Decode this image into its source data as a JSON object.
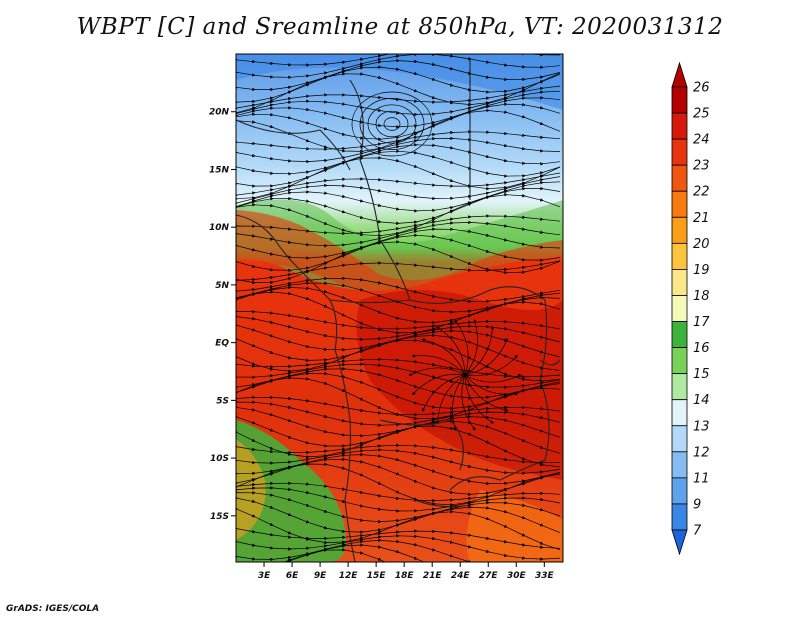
{
  "title": "WBPT [C] and Sreamline at 850hPa, VT: 2020031312",
  "footer": "GrADS: IGES/COLA",
  "map": {
    "lon_range": [
      0,
      35
    ],
    "lat_range": [
      -19,
      25
    ],
    "lat_ticks": [
      {
        "value": 20,
        "label": "20N"
      },
      {
        "value": 15,
        "label": "15N"
      },
      {
        "value": 10,
        "label": "10N"
      },
      {
        "value": 5,
        "label": "5N"
      },
      {
        "value": 0,
        "label": "EQ"
      },
      {
        "value": -5,
        "label": "5S"
      },
      {
        "value": -10,
        "label": "10S"
      },
      {
        "value": -15,
        "label": "15S"
      }
    ],
    "lon_ticks": [
      {
        "value": 3,
        "label": "3E"
      },
      {
        "value": 6,
        "label": "6E"
      },
      {
        "value": 9,
        "label": "9E"
      },
      {
        "value": 12,
        "label": "12E"
      },
      {
        "value": 15,
        "label": "15E"
      },
      {
        "value": 18,
        "label": "18E"
      },
      {
        "value": 21,
        "label": "21E"
      },
      {
        "value": 24,
        "label": "24E"
      },
      {
        "value": 27,
        "label": "27E"
      },
      {
        "value": 30,
        "label": "30E"
      },
      {
        "value": 33,
        "label": "33E"
      }
    ]
  },
  "colorbar": {
    "levels": [
      "26",
      "25",
      "24",
      "23",
      "22",
      "21",
      "20",
      "19",
      "18",
      "17",
      "16",
      "15",
      "14",
      "13",
      "12",
      "11",
      "9",
      "7"
    ],
    "colors": [
      "#b40000",
      "#d61a0a",
      "#e8340e",
      "#f05512",
      "#f87a10",
      "#fa9e18",
      "#fcc43c",
      "#fce68a",
      "#f4fab8",
      "#3cb43c",
      "#78d25a",
      "#aeeaa0",
      "#e2f4fa",
      "#b2daf8",
      "#86bcf2",
      "#5ea2ec",
      "#3a86e6",
      "#1c64dc"
    ]
  }
}
